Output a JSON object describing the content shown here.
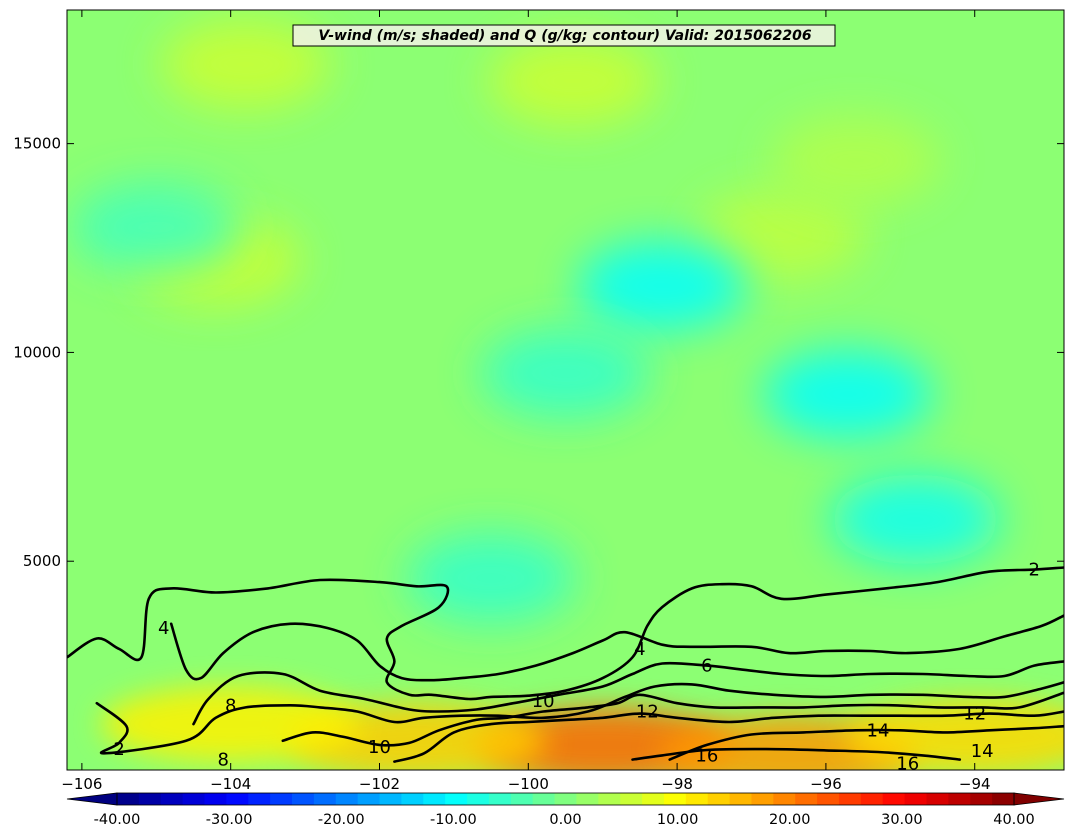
{
  "chart_data": {
    "type": "heatmap",
    "title": "V-wind (m/s; shaded) and Q (g/kg; contour) Valid: 2015062206",
    "xlabel": "",
    "ylabel": "",
    "xlim": [
      -106.2,
      -92.8
    ],
    "ylim": [
      0,
      18200
    ],
    "x_ticks": [
      -106,
      -104,
      -102,
      -100,
      -98,
      -96,
      -94
    ],
    "y_ticks": [
      5000,
      10000,
      15000
    ],
    "shaded_field": {
      "name": "V-wind",
      "units": "m/s",
      "colorbar_range": [
        -40,
        40
      ],
      "colorbar_ticks": [
        "-40.00",
        "-30.00",
        "-20.00",
        "-10.00",
        "0.00",
        "10.00",
        "20.00",
        "30.00",
        "40.00"
      ],
      "colorbar_levels": 41,
      "extend": "both",
      "background_value": 0,
      "features": [
        {
          "x": -104.2,
          "y": 12200,
          "value": 6
        },
        {
          "x": -103.8,
          "y": 16900,
          "value": 6
        },
        {
          "x": -99.4,
          "y": 16500,
          "value": 6
        },
        {
          "x": -96.6,
          "y": 12800,
          "value": 5
        },
        {
          "x": -95.6,
          "y": 14600,
          "value": 4
        },
        {
          "x": -98.2,
          "y": 11600,
          "value": -10
        },
        {
          "x": -95.7,
          "y": 9000,
          "value": -10
        },
        {
          "x": -94.8,
          "y": 6000,
          "value": -9
        },
        {
          "x": -99.5,
          "y": 9500,
          "value": -6
        },
        {
          "x": -105.0,
          "y": 13000,
          "value": -5
        },
        {
          "x": -100.5,
          "y": 4600,
          "value": -6
        },
        {
          "x": -99.0,
          "y": 600,
          "value": 22
        },
        {
          "x": -96.5,
          "y": 400,
          "value": 18
        },
        {
          "x": -101.5,
          "y": 700,
          "value": 14
        },
        {
          "x": -94.0,
          "y": 800,
          "value": 13
        },
        {
          "x": -104.0,
          "y": 1100,
          "value": 11
        }
      ]
    },
    "contour_field": {
      "name": "Q",
      "units": "g/kg",
      "levels": [
        2,
        4,
        6,
        8,
        10,
        12,
        14,
        16
      ],
      "contours": [
        {
          "level": 2,
          "points": [
            [
              -106.2,
              2700
            ],
            [
              -105.8,
              3150
            ],
            [
              -105.5,
              2900
            ],
            [
              -105.2,
              2700
            ],
            [
              -105.1,
              4100
            ],
            [
              -104.8,
              4350
            ],
            [
              -104.2,
              4250
            ],
            [
              -103.5,
              4350
            ],
            [
              -102.8,
              4550
            ],
            [
              -102.0,
              4500
            ],
            [
              -101.5,
              4400
            ],
            [
              -101.1,
              4400
            ],
            [
              -101.2,
              3900
            ],
            [
              -101.7,
              3450
            ],
            [
              -101.9,
              3150
            ],
            [
              -101.8,
              2600
            ],
            [
              -101.9,
              2100
            ],
            [
              -101.6,
              1800
            ],
            [
              -101.3,
              1800
            ],
            [
              -100.8,
              1700
            ],
            [
              -100.5,
              1750
            ],
            [
              -100.0,
              1780
            ],
            [
              -99.5,
              1900
            ],
            [
              -99.0,
              2200
            ],
            [
              -98.6,
              2700
            ],
            [
              -98.4,
              3450
            ],
            [
              -98.2,
              3900
            ],
            [
              -97.8,
              4350
            ],
            [
              -97.4,
              4450
            ],
            [
              -97.0,
              4400
            ],
            [
              -96.6,
              4100
            ],
            [
              -96.0,
              4200
            ],
            [
              -95.2,
              4350
            ],
            [
              -94.5,
              4500
            ],
            [
              -93.8,
              4750
            ],
            [
              -93.2,
              4800
            ],
            [
              -92.8,
              4850
            ]
          ]
        },
        {
          "level": 4,
          "points": [
            [
              -104.8,
              3500
            ],
            [
              -104.6,
              2400
            ],
            [
              -104.4,
              2200
            ],
            [
              -104.1,
              2800
            ],
            [
              -103.7,
              3300
            ],
            [
              -103.2,
              3500
            ],
            [
              -102.7,
              3400
            ],
            [
              -102.3,
              3100
            ],
            [
              -102.0,
              2500
            ],
            [
              -101.7,
              2200
            ],
            [
              -101.3,
              2150
            ],
            [
              -100.9,
              2200
            ],
            [
              -100.4,
              2300
            ],
            [
              -99.9,
              2500
            ],
            [
              -99.4,
              2800
            ],
            [
              -99.0,
              3100
            ],
            [
              -98.7,
              3300
            ],
            [
              -98.2,
              3000
            ],
            [
              -97.8,
              2950
            ],
            [
              -97.0,
              2950
            ],
            [
              -96.5,
              2800
            ],
            [
              -96.0,
              2850
            ],
            [
              -95.4,
              2850
            ],
            [
              -94.9,
              2800
            ],
            [
              -94.2,
              2900
            ],
            [
              -93.6,
              3200
            ],
            [
              -93.1,
              3450
            ],
            [
              -92.8,
              3700
            ]
          ]
        },
        {
          "level": 6,
          "points": [
            [
              -104.5,
              1100
            ],
            [
              -104.3,
              1700
            ],
            [
              -103.9,
              2250
            ],
            [
              -103.3,
              2300
            ],
            [
              -102.8,
              1900
            ],
            [
              -102.2,
              1700
            ],
            [
              -101.6,
              1450
            ],
            [
              -101.2,
              1400
            ],
            [
              -100.7,
              1450
            ],
            [
              -100.2,
              1600
            ],
            [
              -99.6,
              1800
            ],
            [
              -99.0,
              2000
            ],
            [
              -98.6,
              2300
            ],
            [
              -98.2,
              2550
            ],
            [
              -97.6,
              2500
            ],
            [
              -97.1,
              2400
            ],
            [
              -96.6,
              2300
            ],
            [
              -96.0,
              2250
            ],
            [
              -95.4,
              2300
            ],
            [
              -94.7,
              2300
            ],
            [
              -94.1,
              2250
            ],
            [
              -93.6,
              2250
            ],
            [
              -93.2,
              2500
            ],
            [
              -92.8,
              2600
            ]
          ]
        },
        {
          "level": 8,
          "points": [
            [
              -105.8,
              1600
            ],
            [
              -105.4,
              1050
            ],
            [
              -105.5,
              650
            ],
            [
              -105.7,
              400
            ],
            [
              -104.6,
              700
            ],
            [
              -104.2,
              1250
            ],
            [
              -103.8,
              1500
            ],
            [
              -103.2,
              1550
            ],
            [
              -102.8,
              1500
            ],
            [
              -102.3,
              1400
            ],
            [
              -101.8,
              1150
            ],
            [
              -101.4,
              1250
            ],
            [
              -100.9,
              1300
            ],
            [
              -100.4,
              1300
            ],
            [
              -99.8,
              1250
            ],
            [
              -99.2,
              1400
            ],
            [
              -98.7,
              1750
            ],
            [
              -98.3,
              2000
            ],
            [
              -97.8,
              2050
            ],
            [
              -97.3,
              1900
            ],
            [
              -96.7,
              1800
            ],
            [
              -96.0,
              1750
            ],
            [
              -95.4,
              1800
            ],
            [
              -94.7,
              1800
            ],
            [
              -94.1,
              1750
            ],
            [
              -93.6,
              1750
            ],
            [
              -93.1,
              1950
            ],
            [
              -92.8,
              2100
            ]
          ]
        },
        {
          "level": 10,
          "points": [
            [
              -103.3,
              700
            ],
            [
              -102.9,
              900
            ],
            [
              -102.5,
              800
            ],
            [
              -102.0,
              600
            ],
            [
              -101.6,
              650
            ],
            [
              -101.2,
              950
            ],
            [
              -100.7,
              1200
            ],
            [
              -100.3,
              1250
            ],
            [
              -99.8,
              1400
            ],
            [
              -99.2,
              1500
            ],
            [
              -98.8,
              1600
            ],
            [
              -98.5,
              1800
            ],
            [
              -98.0,
              1600
            ],
            [
              -97.5,
              1500
            ],
            [
              -96.9,
              1500
            ],
            [
              -96.3,
              1500
            ],
            [
              -95.7,
              1550
            ],
            [
              -95.1,
              1550
            ],
            [
              -94.5,
              1500
            ],
            [
              -93.9,
              1500
            ],
            [
              -93.4,
              1500
            ],
            [
              -92.8,
              1850
            ]
          ]
        },
        {
          "level": 12,
          "points": [
            [
              -101.8,
              200
            ],
            [
              -101.4,
              400
            ],
            [
              -101.0,
              900
            ],
            [
              -100.5,
              1100
            ],
            [
              -100.0,
              1150
            ],
            [
              -99.5,
              1200
            ],
            [
              -99.0,
              1250
            ],
            [
              -98.5,
              1350
            ],
            [
              -98.0,
              1250
            ],
            [
              -97.3,
              1150
            ],
            [
              -96.7,
              1250
            ],
            [
              -96.1,
              1300
            ],
            [
              -95.5,
              1300
            ],
            [
              -95.0,
              1300
            ],
            [
              -94.4,
              1300
            ],
            [
              -93.8,
              1350
            ],
            [
              -93.2,
              1300
            ],
            [
              -92.8,
              1400
            ]
          ]
        },
        {
          "level": 14,
          "points": [
            [
              -98.1,
              250
            ],
            [
              -97.6,
              600
            ],
            [
              -97.0,
              850
            ],
            [
              -96.3,
              900
            ],
            [
              -95.6,
              950
            ],
            [
              -95.0,
              950
            ],
            [
              -94.4,
              900
            ],
            [
              -93.8,
              950
            ],
            [
              -93.2,
              1000
            ],
            [
              -92.8,
              1050
            ]
          ]
        },
        {
          "level": 16,
          "points": [
            [
              -98.6,
              250
            ],
            [
              -98.2,
              350
            ],
            [
              -97.6,
              480
            ],
            [
              -96.8,
              500
            ],
            [
              -96.0,
              470
            ],
            [
              -95.3,
              430
            ],
            [
              -94.7,
              350
            ],
            [
              -94.2,
              250
            ]
          ]
        }
      ],
      "labels": [
        {
          "text": "2",
          "x": -93.2,
          "y": 4800
        },
        {
          "text": "2",
          "x": -105.5,
          "y": 500
        },
        {
          "text": "4",
          "x": -104.9,
          "y": 3400
        },
        {
          "text": "4",
          "x": -98.5,
          "y": 2900
        },
        {
          "text": "6",
          "x": -97.6,
          "y": 2500
        },
        {
          "text": "8",
          "x": -104.0,
          "y": 1550
        },
        {
          "text": "8",
          "x": -104.1,
          "y": 250
        },
        {
          "text": "10",
          "x": -99.8,
          "y": 1650
        },
        {
          "text": "10",
          "x": -102.0,
          "y": 550
        },
        {
          "text": "12",
          "x": -98.4,
          "y": 1400
        },
        {
          "text": "12",
          "x": -94.0,
          "y": 1350
        },
        {
          "text": "14",
          "x": -95.3,
          "y": 950
        },
        {
          "text": "14",
          "x": -93.9,
          "y": 450
        },
        {
          "text": "16",
          "x": -97.6,
          "y": 350
        },
        {
          "text": "16",
          "x": -94.9,
          "y": 150
        }
      ]
    }
  }
}
